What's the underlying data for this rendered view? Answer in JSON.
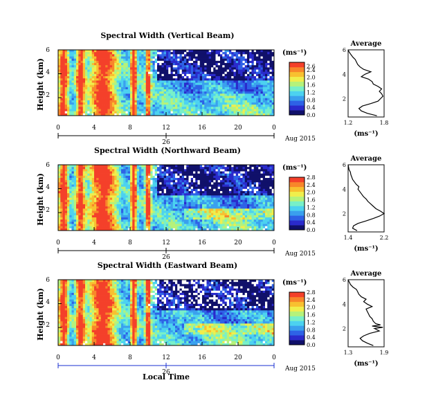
{
  "x_axis_label": "Local Time",
  "colors": {
    "colormap": [
      "#10106a",
      "#2a2acc",
      "#2e62e6",
      "#3aa0ee",
      "#4cd2f0",
      "#78f0c8",
      "#b6f27a",
      "#f0ee4c",
      "#f8c030",
      "#f8862a",
      "#f4402a"
    ],
    "blank": "#ffffff"
  },
  "chart_data": [
    {
      "type": "heatmap",
      "title": "Spectral Width (Vertical Beam)",
      "ylabel": "Height (km)",
      "y_ticks": [
        "6",
        "4",
        "2"
      ],
      "x_ticks": [
        "0",
        "4",
        "8",
        "12",
        "16",
        "20",
        "0"
      ],
      "date_day": "26",
      "date_label": "Aug 2015",
      "x_range": [
        0,
        24
      ],
      "y_range": [
        0.5,
        6
      ],
      "colorbar": {
        "unit": "(ms⁻¹)",
        "ticks": [
          "2.6",
          "2.4",
          "2.0",
          "1.6",
          "1.2",
          "0.8",
          "0.4",
          "0.0"
        ],
        "range": [
          0.0,
          2.8
        ]
      },
      "average": {
        "title": "Average",
        "xlabel": "(ms⁻¹)",
        "x_ticks": [
          "1.2",
          "1.8"
        ],
        "x_range": [
          1.2,
          1.8
        ],
        "y_ticks": [
          "6",
          "4",
          "2"
        ],
        "profile": [
          [
            0.6,
            1.68
          ],
          [
            0.8,
            1.52
          ],
          [
            1.0,
            1.42
          ],
          [
            1.2,
            1.38
          ],
          [
            1.4,
            1.44
          ],
          [
            1.6,
            1.58
          ],
          [
            1.8,
            1.7
          ],
          [
            2.0,
            1.74
          ],
          [
            2.2,
            1.78
          ],
          [
            2.4,
            1.76
          ],
          [
            2.6,
            1.72
          ],
          [
            2.8,
            1.76
          ],
          [
            3.0,
            1.7
          ],
          [
            3.2,
            1.62
          ],
          [
            3.4,
            1.6
          ],
          [
            3.6,
            1.54
          ],
          [
            3.8,
            1.42
          ],
          [
            4.0,
            1.48
          ],
          [
            4.2,
            1.58
          ],
          [
            4.4,
            1.46
          ],
          [
            4.6,
            1.4
          ],
          [
            4.8,
            1.36
          ],
          [
            5.0,
            1.34
          ],
          [
            5.2,
            1.32
          ],
          [
            5.4,
            1.28
          ],
          [
            5.6,
            1.25
          ],
          [
            5.8,
            1.22
          ],
          [
            6.0,
            1.2
          ]
        ]
      }
    },
    {
      "type": "heatmap",
      "title": "Spectral Width (Northward Beam)",
      "ylabel": "Height (km)",
      "y_ticks": [
        "6",
        "4",
        "2"
      ],
      "x_ticks": [
        "0",
        "4",
        "8",
        "12",
        "16",
        "20",
        "0"
      ],
      "date_day": "26",
      "date_label": "Aug 2015",
      "x_range": [
        0,
        24
      ],
      "y_range": [
        0.5,
        6
      ],
      "colorbar": {
        "unit": "(ms⁻¹)",
        "ticks": [
          "2.8",
          "2.4",
          "2.0",
          "1.6",
          "1.2",
          "0.8",
          "0.4",
          "0.0"
        ],
        "range": [
          0.0,
          2.8
        ]
      },
      "average": {
        "title": "Average",
        "xlabel": "(ms⁻¹)",
        "x_ticks": [
          "1.4",
          "2.2"
        ],
        "x_range": [
          1.4,
          2.2
        ],
        "y_ticks": [
          "6",
          "4",
          "2"
        ],
        "profile": [
          [
            0.6,
            1.6
          ],
          [
            0.8,
            1.5
          ],
          [
            1.0,
            1.52
          ],
          [
            1.2,
            1.62
          ],
          [
            1.4,
            1.8
          ],
          [
            1.6,
            1.96
          ],
          [
            1.8,
            2.1
          ],
          [
            2.0,
            2.2
          ],
          [
            2.2,
            2.12
          ],
          [
            2.4,
            2.02
          ],
          [
            2.6,
            1.96
          ],
          [
            2.8,
            1.9
          ],
          [
            3.0,
            1.84
          ],
          [
            3.2,
            1.8
          ],
          [
            3.4,
            1.74
          ],
          [
            3.6,
            1.7
          ],
          [
            3.8,
            1.66
          ],
          [
            4.0,
            1.62
          ],
          [
            4.2,
            1.64
          ],
          [
            4.4,
            1.58
          ],
          [
            4.6,
            1.54
          ],
          [
            4.8,
            1.5
          ],
          [
            5.0,
            1.48
          ],
          [
            5.2,
            1.46
          ],
          [
            5.4,
            1.45
          ],
          [
            5.6,
            1.42
          ],
          [
            5.8,
            1.41
          ],
          [
            6.0,
            1.4
          ]
        ]
      }
    },
    {
      "type": "heatmap",
      "title": "Spectral Width (Eastward Beam)",
      "ylabel": "Height (km)",
      "y_ticks": [
        "6",
        "4",
        "2"
      ],
      "x_ticks": [
        "0",
        "4",
        "8",
        "12",
        "16",
        "20",
        "0"
      ],
      "date_day": "26",
      "date_label": "Aug 2015",
      "x_range": [
        0,
        24
      ],
      "y_range": [
        0.5,
        6
      ],
      "colorbar": {
        "unit": "(ms⁻¹)",
        "ticks": [
          "2.8",
          "2.4",
          "2.0",
          "1.6",
          "1.2",
          "0.8",
          "0.4",
          "0.0"
        ],
        "range": [
          0.0,
          2.8
        ]
      },
      "average": {
        "title": "Average",
        "xlabel": "(ms⁻¹)",
        "x_ticks": [
          "1.3",
          "1.9"
        ],
        "x_range": [
          1.3,
          1.9
        ],
        "y_ticks": [
          "6",
          "4",
          "2"
        ],
        "profile": [
          [
            0.6,
            1.72
          ],
          [
            0.8,
            1.62
          ],
          [
            1.0,
            1.54
          ],
          [
            1.2,
            1.5
          ],
          [
            1.4,
            1.56
          ],
          [
            1.6,
            1.66
          ],
          [
            1.8,
            1.82
          ],
          [
            2.0,
            1.74
          ],
          [
            2.1,
            1.88
          ],
          [
            2.2,
            1.7
          ],
          [
            2.3,
            1.84
          ],
          [
            2.4,
            1.76
          ],
          [
            2.6,
            1.72
          ],
          [
            2.8,
            1.7
          ],
          [
            3.0,
            1.66
          ],
          [
            3.2,
            1.64
          ],
          [
            3.4,
            1.62
          ],
          [
            3.6,
            1.6
          ],
          [
            3.8,
            1.7
          ],
          [
            4.0,
            1.62
          ],
          [
            4.2,
            1.56
          ],
          [
            4.4,
            1.6
          ],
          [
            4.6,
            1.52
          ],
          [
            4.8,
            1.48
          ],
          [
            5.0,
            1.46
          ],
          [
            5.2,
            1.44
          ],
          [
            5.4,
            1.38
          ],
          [
            5.6,
            1.34
          ],
          [
            5.8,
            1.32
          ],
          [
            6.0,
            1.3
          ]
        ]
      }
    }
  ]
}
